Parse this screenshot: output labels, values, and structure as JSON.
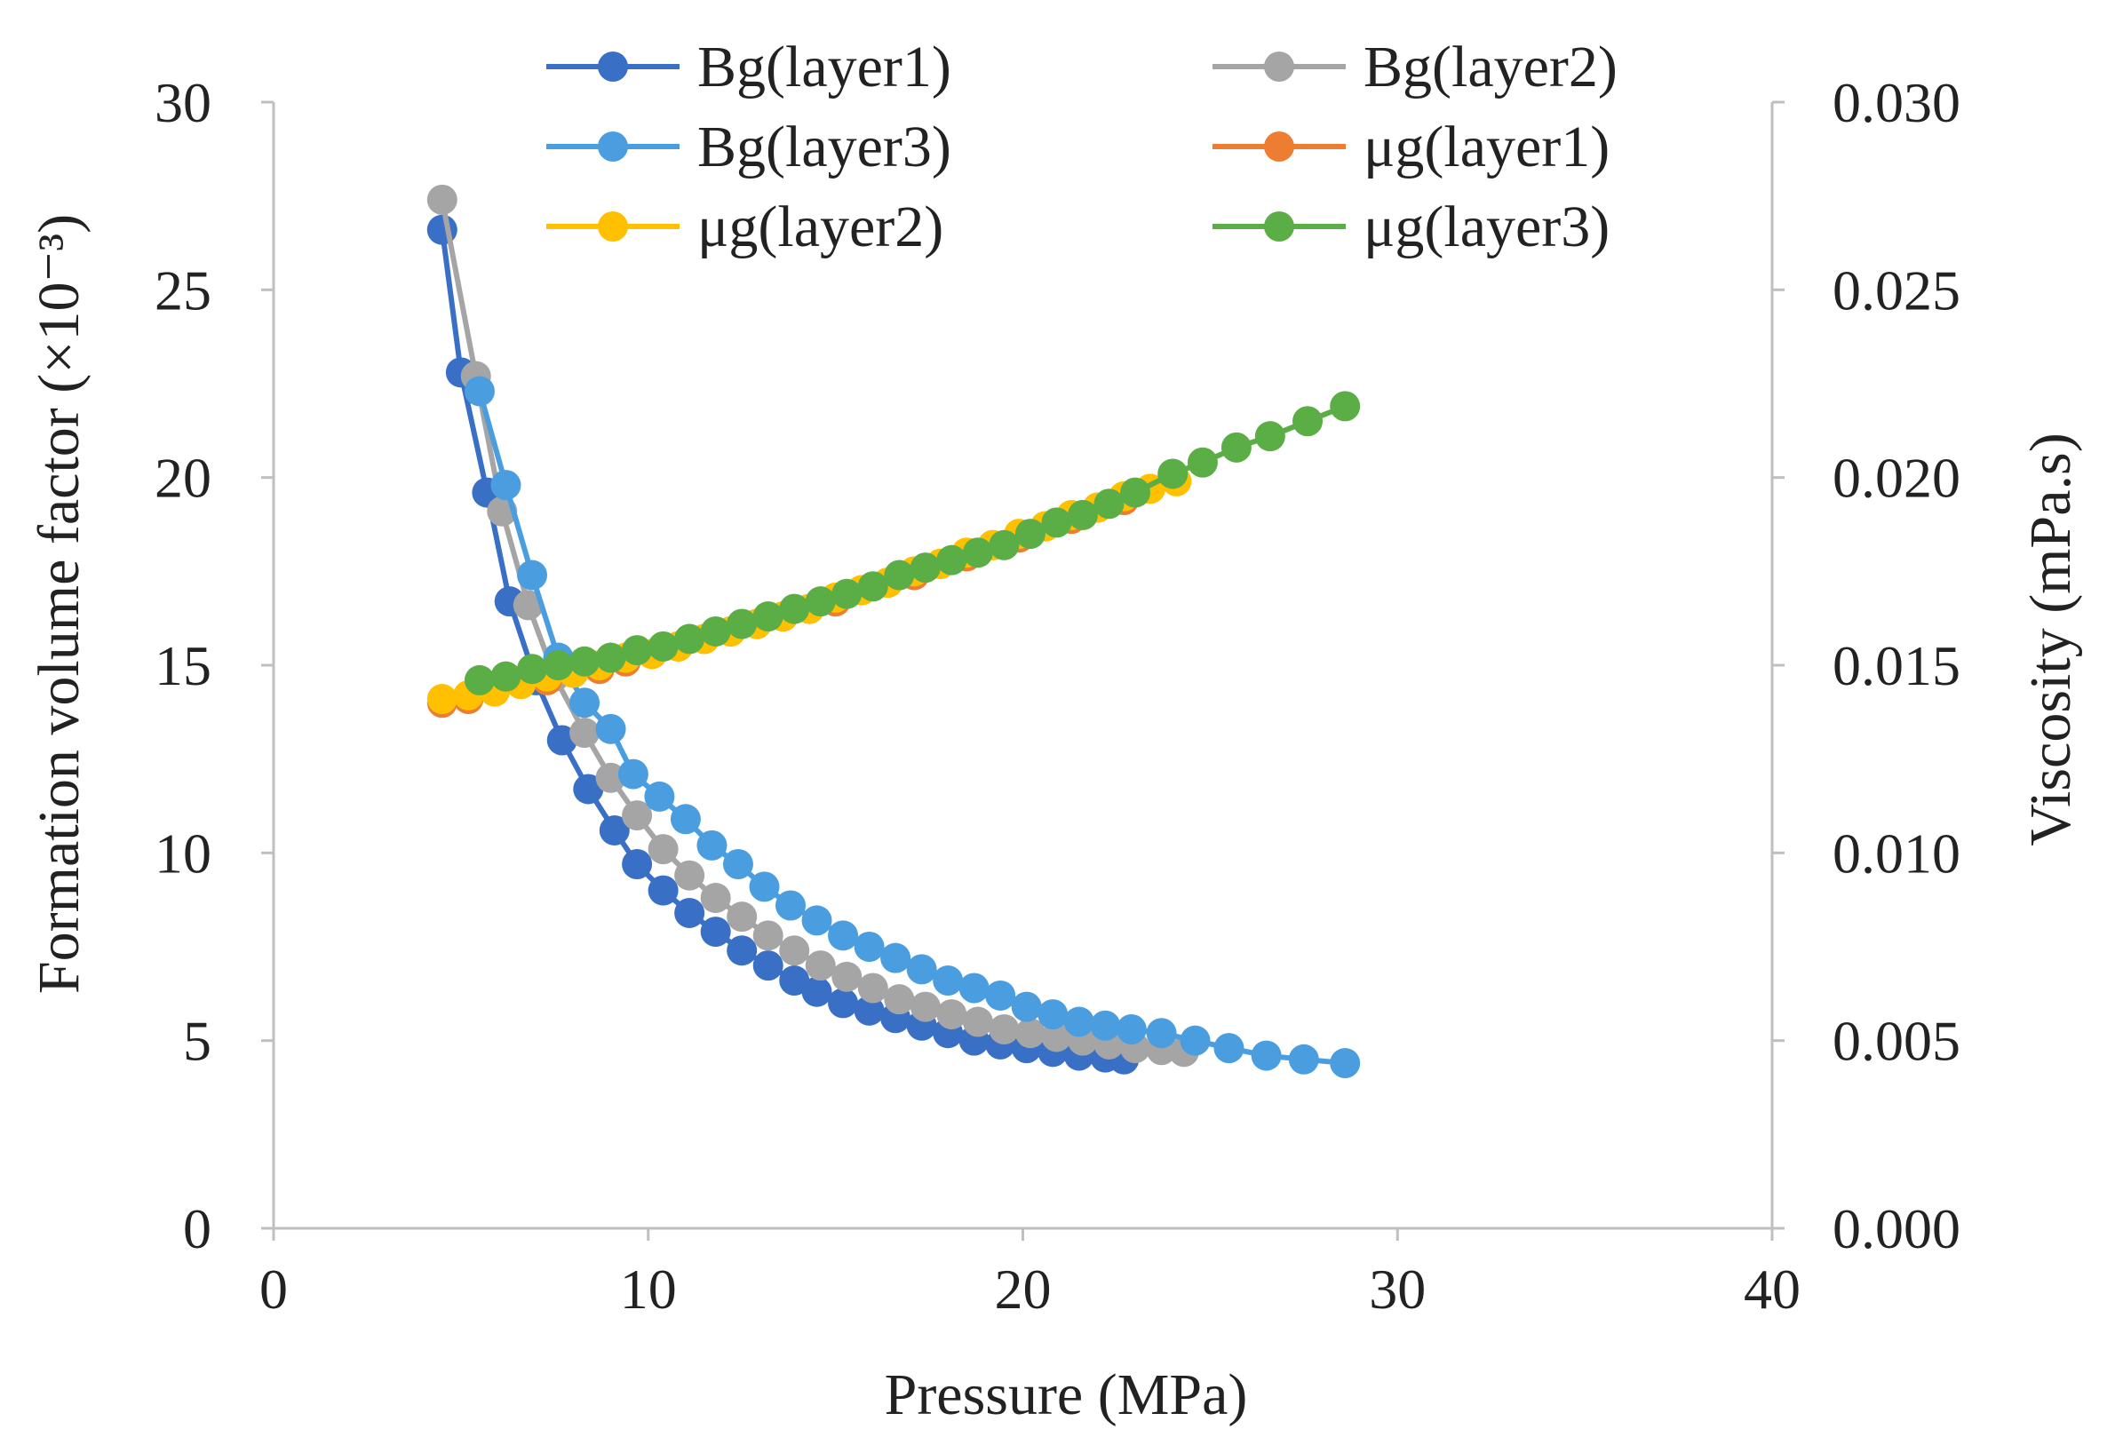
{
  "chart_data": {
    "type": "line",
    "title": "",
    "xlabel": "Pressure (MPa)",
    "ylabel": "Formation volume factor (×10⁻³)",
    "y2label": "Viscosity (mPa.s)",
    "xlim": [
      0,
      40
    ],
    "ylim": [
      0,
      30
    ],
    "y2lim": [
      0,
      0.03
    ],
    "xticks": [
      "0",
      "10",
      "20",
      "30",
      "40"
    ],
    "yticks": [
      "0",
      "5",
      "10",
      "15",
      "20",
      "25",
      "30"
    ],
    "y2ticks": [
      "0.000",
      "0.005",
      "0.010",
      "0.015",
      "0.020",
      "0.025",
      "0.030"
    ],
    "grid": false,
    "legend_position": "top",
    "series": [
      {
        "name": "Bg(layer1)",
        "axis": "left",
        "color": "#3a6fc6",
        "x": [
          4.5,
          5.0,
          5.7,
          6.3,
          7.0,
          7.7,
          8.4,
          9.1,
          9.7,
          10.4,
          11.1,
          11.8,
          12.5,
          13.2,
          13.9,
          14.5,
          15.2,
          15.9,
          16.6,
          17.3,
          18.0,
          18.7,
          19.4,
          20.1,
          20.8,
          21.5,
          22.2,
          22.7
        ],
        "y": [
          26.6,
          22.8,
          19.6,
          16.7,
          14.6,
          13.0,
          11.7,
          10.6,
          9.7,
          9.0,
          8.4,
          7.9,
          7.4,
          7.0,
          6.6,
          6.3,
          6.0,
          5.8,
          5.6,
          5.4,
          5.2,
          5.0,
          4.9,
          4.8,
          4.7,
          4.6,
          4.55,
          4.5
        ]
      },
      {
        "name": "Bg(layer2)",
        "axis": "left",
        "color": "#a5a5a5",
        "x": [
          4.5,
          5.4,
          6.1,
          6.8,
          7.5,
          8.3,
          9.0,
          9.7,
          10.4,
          11.1,
          11.8,
          12.5,
          13.2,
          13.9,
          14.6,
          15.3,
          16.0,
          16.7,
          17.4,
          18.1,
          18.8,
          19.5,
          20.2,
          20.9,
          21.6,
          22.3,
          23.0,
          23.7,
          24.3
        ],
        "y": [
          27.4,
          22.7,
          19.1,
          16.6,
          14.7,
          13.2,
          12.0,
          11.0,
          10.1,
          9.4,
          8.8,
          8.3,
          7.8,
          7.4,
          7.0,
          6.7,
          6.4,
          6.1,
          5.9,
          5.7,
          5.5,
          5.3,
          5.2,
          5.1,
          5.0,
          4.9,
          4.8,
          4.75,
          4.7
        ]
      },
      {
        "name": "Bg(layer3)",
        "axis": "left",
        "color": "#4a9ee0",
        "x": [
          5.5,
          6.2,
          6.9,
          7.6,
          8.3,
          9.0,
          9.6,
          10.3,
          11.0,
          11.7,
          12.4,
          13.1,
          13.8,
          14.5,
          15.2,
          15.9,
          16.6,
          17.3,
          18.0,
          18.7,
          19.4,
          20.1,
          20.8,
          21.5,
          22.2,
          22.9,
          23.7,
          24.6,
          25.5,
          26.5,
          27.5,
          28.6
        ],
        "y": [
          22.3,
          19.8,
          17.4,
          15.2,
          14.0,
          13.3,
          12.1,
          11.5,
          10.9,
          10.2,
          9.7,
          9.1,
          8.6,
          8.2,
          7.8,
          7.5,
          7.2,
          6.9,
          6.6,
          6.4,
          6.2,
          5.9,
          5.7,
          5.5,
          5.4,
          5.3,
          5.2,
          5.0,
          4.8,
          4.6,
          4.5,
          4.4
        ]
      },
      {
        "name": "μg(layer1)",
        "axis": "right",
        "color": "#ed7d31",
        "x": [
          4.5,
          5.2,
          5.9,
          6.6,
          7.3,
          8.0,
          8.7,
          9.4,
          10.1,
          10.8,
          11.5,
          12.2,
          12.9,
          13.6,
          14.3,
          15.0,
          15.7,
          16.4,
          17.1,
          17.8,
          18.5,
          19.2,
          19.9,
          20.6,
          21.3,
          22.0,
          22.7
        ],
        "y": [
          0.014,
          0.0141,
          0.0143,
          0.0145,
          0.0146,
          0.0148,
          0.0149,
          0.0151,
          0.0153,
          0.0155,
          0.0157,
          0.0159,
          0.0161,
          0.0163,
          0.0165,
          0.0167,
          0.017,
          0.0172,
          0.0174,
          0.0177,
          0.0179,
          0.0182,
          0.0184,
          0.0187,
          0.0189,
          0.0192,
          0.0194
        ]
      },
      {
        "name": "μg(layer2)",
        "axis": "right",
        "color": "#ffc000",
        "x": [
          4.5,
          5.2,
          5.9,
          6.6,
          7.3,
          8.0,
          8.7,
          9.4,
          10.1,
          10.8,
          11.5,
          12.2,
          12.9,
          13.6,
          14.3,
          15.0,
          15.7,
          16.4,
          17.1,
          17.8,
          18.5,
          19.2,
          19.9,
          20.6,
          21.3,
          22.0,
          22.7,
          23.4,
          24.1
        ],
        "y": [
          0.0141,
          0.0142,
          0.0143,
          0.0145,
          0.0147,
          0.0148,
          0.015,
          0.0152,
          0.0153,
          0.0155,
          0.0157,
          0.0159,
          0.0161,
          0.0163,
          0.0165,
          0.0168,
          0.017,
          0.0172,
          0.0175,
          0.0177,
          0.018,
          0.0182,
          0.0185,
          0.0187,
          0.019,
          0.0192,
          0.0195,
          0.0197,
          0.0199
        ]
      },
      {
        "name": "μg(layer3)",
        "axis": "right",
        "color": "#5bad45",
        "x": [
          5.5,
          6.2,
          6.9,
          7.6,
          8.3,
          9.0,
          9.7,
          10.4,
          11.1,
          11.8,
          12.5,
          13.2,
          13.9,
          14.6,
          15.3,
          16.0,
          16.7,
          17.4,
          18.1,
          18.8,
          19.5,
          20.2,
          20.9,
          21.6,
          22.3,
          23.0,
          24.0,
          24.8,
          25.7,
          26.6,
          27.6,
          28.6
        ],
        "y": [
          0.0146,
          0.0147,
          0.0149,
          0.015,
          0.0151,
          0.0152,
          0.0154,
          0.0155,
          0.0157,
          0.0159,
          0.0161,
          0.0163,
          0.0165,
          0.0167,
          0.0169,
          0.0171,
          0.0174,
          0.0176,
          0.0178,
          0.018,
          0.0182,
          0.0185,
          0.0188,
          0.019,
          0.0193,
          0.0196,
          0.0201,
          0.0204,
          0.0208,
          0.0211,
          0.0215,
          0.0219
        ]
      }
    ]
  }
}
